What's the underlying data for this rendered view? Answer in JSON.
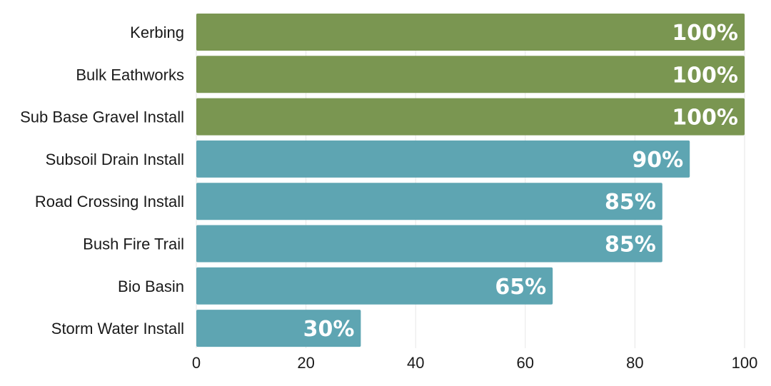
{
  "chart_data": {
    "type": "bar",
    "orientation": "horizontal",
    "title": "",
    "xlabel": "",
    "ylabel": "",
    "xlim": [
      0,
      100
    ],
    "ticks": [
      "0",
      "20",
      "40",
      "60",
      "80",
      "100"
    ],
    "tick_values": [
      0,
      20,
      40,
      60,
      80,
      100
    ],
    "grid": true,
    "legend": "none",
    "categories": [
      "Kerbing",
      "Bulk Eathworks",
      "Sub Base Gravel Install",
      "Subsoil Drain Install",
      "Road Crossing Install",
      "Bush Fire Trail",
      "Bio Basin",
      "Storm Water Install"
    ],
    "values": [
      100,
      100,
      100,
      90,
      85,
      85,
      65,
      30
    ],
    "data_labels": [
      "100%",
      "100%",
      "100%",
      "90%",
      "85%",
      "85%",
      "65%",
      "30%"
    ],
    "colors": {
      "complete": "#7a9651",
      "in_progress": "#5ea5b2"
    }
  }
}
